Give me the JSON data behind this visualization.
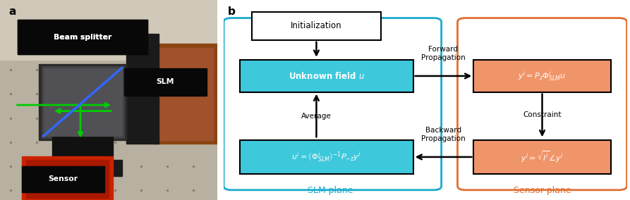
{
  "fig_width": 8.93,
  "fig_height": 2.84,
  "dpi": 100,
  "cyan_box_fill": "#3EC8DC",
  "cyan_border_color": "#1AABCC",
  "orange_box_fill": "#F0956A",
  "orange_border_color": "#E07030",
  "slm_plane_label": "SLM plane",
  "sensor_plane_label": "Sensor plane",
  "init_label": "Initialization",
  "uf_label": "Unknown field $u$",
  "slm_bot_label": "$u^i = \\left(\\Phi^i_{SLM}\\right)^{-1}P_{-z}y^i$",
  "s_top_label": "$y^i = P_z\\Phi^i_{SLM}u$",
  "s_bot_label": "$y^i = \\sqrt{I^i}\\angle y^i$",
  "forward_label": "Forward\nPropagation",
  "backward_label": "Backward\nPropagation",
  "average_label": "Average",
  "constraint_label": "Constraint"
}
